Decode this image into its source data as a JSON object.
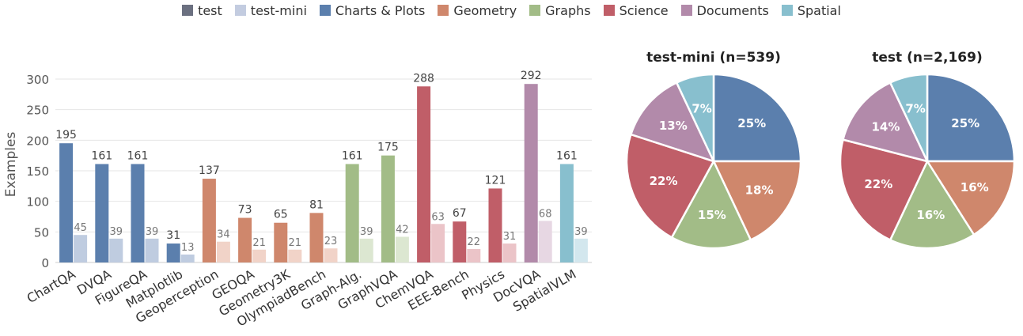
{
  "legend": {
    "items": [
      {
        "label": "test",
        "color": "#6b7080"
      },
      {
        "label": "test-mini",
        "color": "#c3cce0"
      },
      {
        "label": "Charts & Plots",
        "color": "#5b7fad"
      },
      {
        "label": "Geometry",
        "color": "#cf876c"
      },
      {
        "label": "Graphs",
        "color": "#a2bc87"
      },
      {
        "label": "Science",
        "color": "#c05e68"
      },
      {
        "label": "Documents",
        "color": "#b28aaa"
      },
      {
        "label": "Spatial",
        "color": "#88bfce"
      }
    ]
  },
  "chart_data": [
    {
      "type": "bar",
      "ylabel": "Examples",
      "xlabel": "",
      "ylim": [
        0,
        300
      ],
      "yticks": [
        0,
        50,
        100,
        150,
        200,
        250,
        300
      ],
      "grid": true,
      "categories": [
        "ChartQA",
        "DVQA",
        "FigureQA",
        "Matplotlib",
        "Geoperception",
        "GEOQA",
        "Geometry3K",
        "OlympiadBench",
        "Graph-Alg.",
        "GraphVQA",
        "ChemVQA",
        "EEE-Bench",
        "Physics",
        "DocVQA",
        "SpatialVLM"
      ],
      "groups": [
        "Charts & Plots",
        "Charts & Plots",
        "Charts & Plots",
        "Charts & Plots",
        "Geometry",
        "Geometry",
        "Geometry",
        "Geometry",
        "Graphs",
        "Graphs",
        "Science",
        "Science",
        "Science",
        "Documents",
        "Spatial"
      ],
      "series": [
        {
          "name": "test",
          "values": [
            195,
            161,
            161,
            31,
            137,
            73,
            65,
            81,
            161,
            175,
            288,
            67,
            121,
            292,
            161
          ]
        },
        {
          "name": "test-mini",
          "values": [
            45,
            39,
            39,
            13,
            34,
            21,
            21,
            23,
            39,
            42,
            63,
            22,
            31,
            68,
            39
          ]
        }
      ],
      "group_colors": {
        "Charts & Plots": {
          "test": "#5b7fad",
          "mini": "#bfcce0"
        },
        "Geometry": {
          "test": "#cf876c",
          "mini": "#f1d3c8"
        },
        "Graphs": {
          "test": "#a2bc87",
          "mini": "#dce7d1"
        },
        "Science": {
          "test": "#c05e68",
          "mini": "#ebc4c8"
        },
        "Documents": {
          "test": "#b28aaa",
          "mini": "#e7d7e3"
        },
        "Spatial": {
          "test": "#88bfce",
          "mini": "#d3e7ee"
        }
      }
    },
    {
      "type": "pie",
      "title": "test-mini  (n=539)",
      "labels": [
        "Charts & Plots",
        "Geometry",
        "Graphs",
        "Science",
        "Documents",
        "Spatial"
      ],
      "values": [
        25,
        18,
        15,
        22,
        13,
        7
      ],
      "display": [
        "25%",
        "18%",
        "15%",
        "22%",
        "13%",
        "7%"
      ],
      "colors": [
        "#5b7fad",
        "#cf876c",
        "#a2bc87",
        "#c05e68",
        "#b28aaa",
        "#88bfce"
      ]
    },
    {
      "type": "pie",
      "title": "test  (n=2,169)",
      "labels": [
        "Charts & Plots",
        "Geometry",
        "Graphs",
        "Science",
        "Documents",
        "Spatial"
      ],
      "values": [
        25,
        16,
        16,
        22,
        14,
        7
      ],
      "display": [
        "25%",
        "16%",
        "16%",
        "22%",
        "14%",
        "7%"
      ],
      "colors": [
        "#5b7fad",
        "#cf876c",
        "#a2bc87",
        "#c05e68",
        "#b28aaa",
        "#88bfce"
      ]
    }
  ]
}
